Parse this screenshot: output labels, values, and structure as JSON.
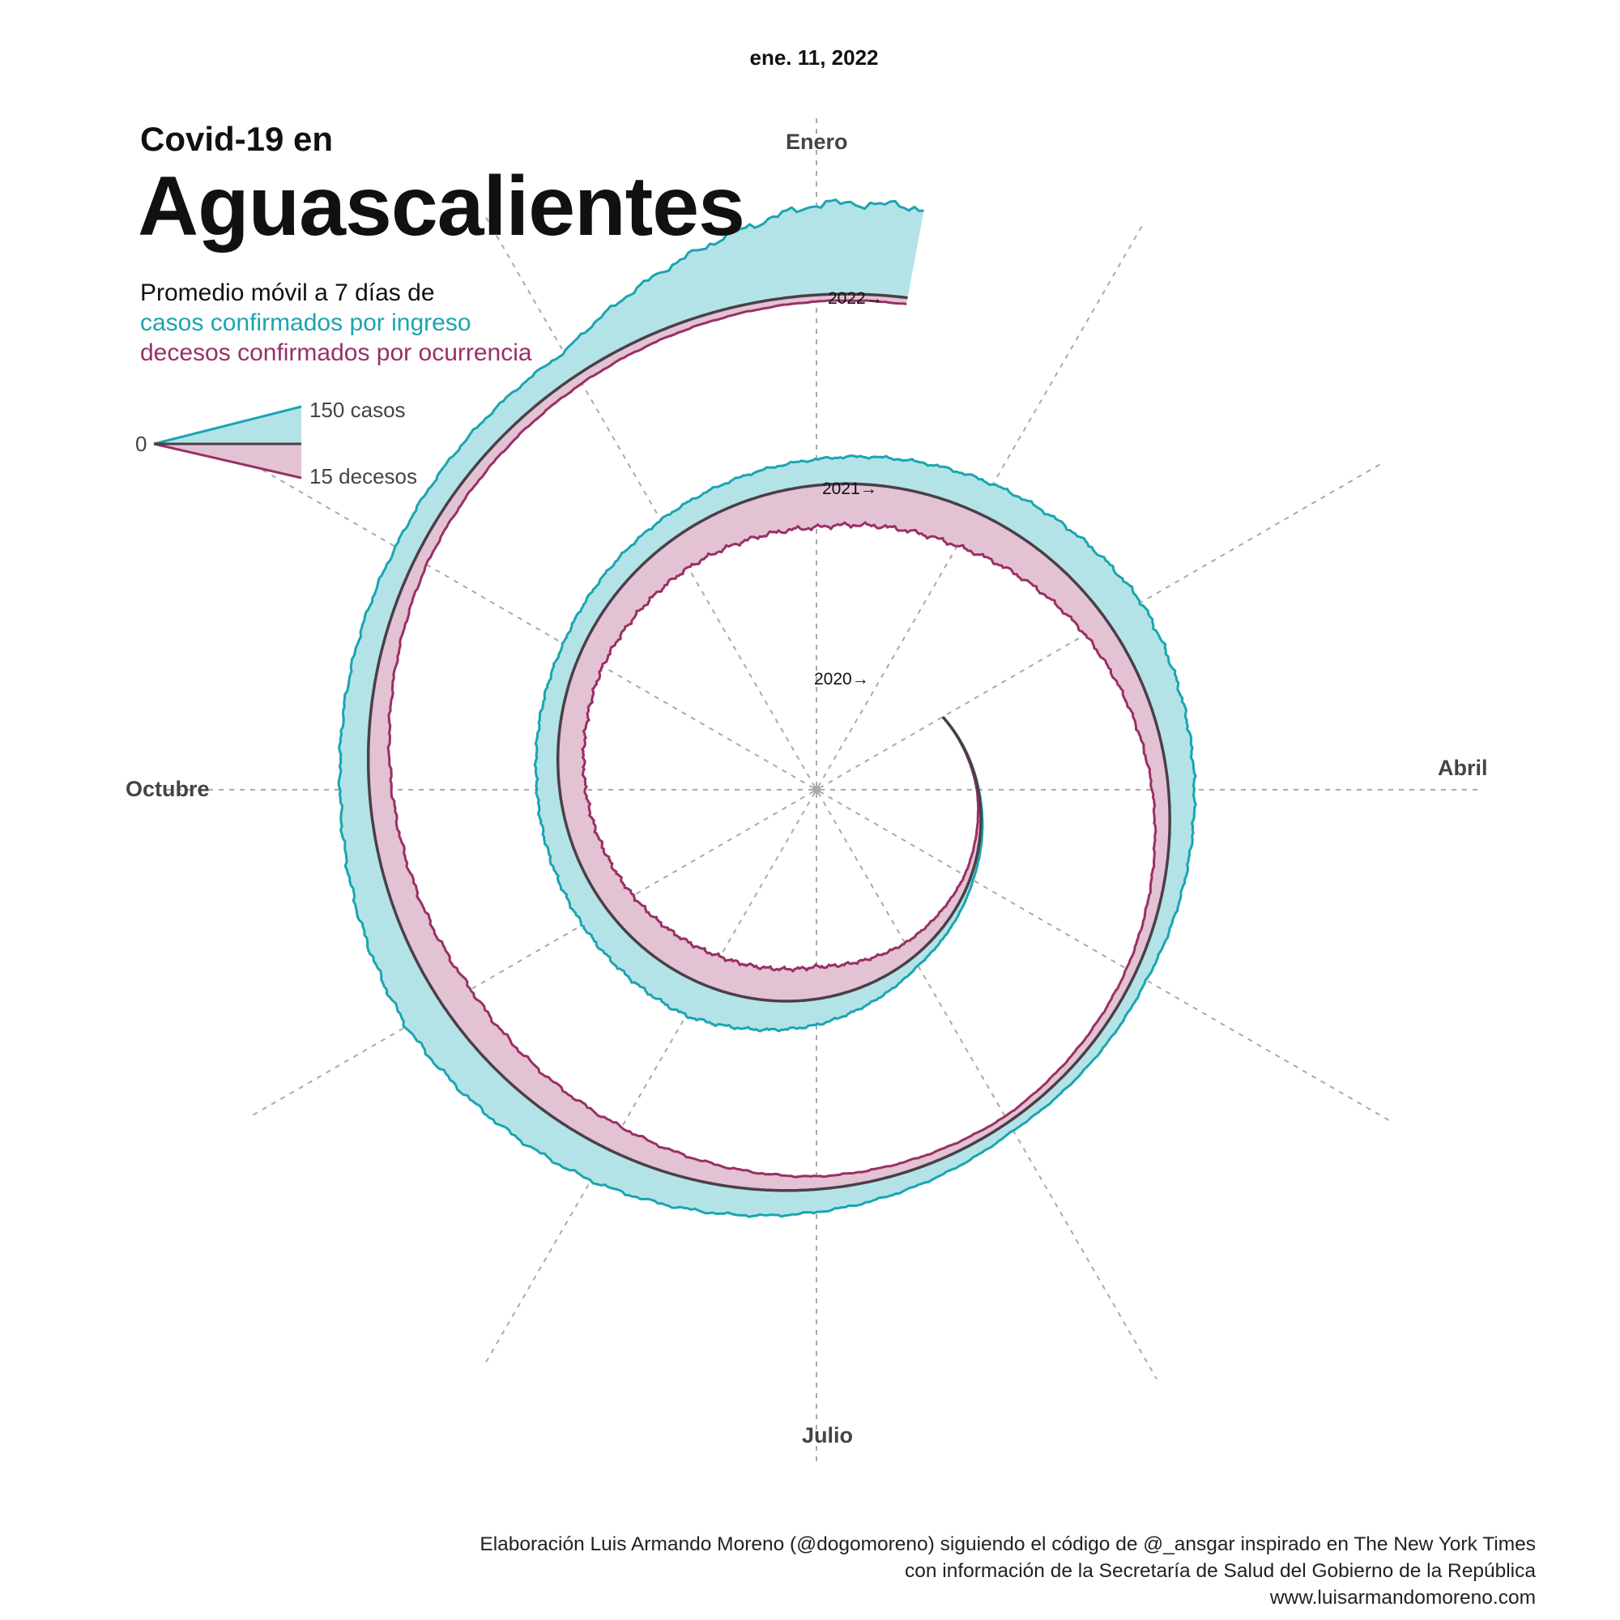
{
  "header": {
    "date": "ene. 11, 2022",
    "title_small": "Covid-19 en",
    "title_big": "Aguascalientes",
    "subtitle_main": "Promedio móvil a 7 días de",
    "subtitle_cases": "casos confirmados por ingreso",
    "subtitle_deaths": "decesos confirmados por ocurrencia"
  },
  "legend": {
    "zero": "0",
    "cases": "150 casos",
    "deaths": "15 decesos"
  },
  "months": {
    "january": "Enero",
    "april": "Abril",
    "july": "Julio",
    "october": "Octubre"
  },
  "credits": {
    "line1": "Elaboración Luis Armando Moreno (@dogomoreno) siguiendo el código de @_ansgar inspirado en The New York Times",
    "line2": "con información de la Secretaría de Salud del Gobierno de la República",
    "line3": "www.luisarmandomoreno.com"
  },
  "colors": {
    "cases": "#1aa5b1",
    "cases_fill": "#b3e3e7",
    "deaths": "#9a2f66",
    "deaths_fill": "#e2c2d3",
    "baseline": "#4a3f48",
    "grid": "#aaaaaa"
  },
  "chart_data": {
    "type": "area",
    "layout": "spiral",
    "start_date": "2020-03",
    "end_date": "2022-01-11",
    "year_labels": [
      "2020→",
      "2021→",
      "2022→"
    ],
    "scale": {
      "cases": 150,
      "deaths": 15
    },
    "series": [
      {
        "name": "casos confirmados por ingreso",
        "side": "outer",
        "x": [
          "2020-03",
          "2020-04",
          "2020-05",
          "2020-06",
          "2020-07",
          "2020-08",
          "2020-09",
          "2020-10",
          "2020-11",
          "2020-12",
          "2021-01",
          "2021-02",
          "2021-03",
          "2021-04",
          "2021-05",
          "2021-06",
          "2021-07",
          "2021-08",
          "2021-09",
          "2021-10",
          "2021-11",
          "2021-12",
          "2022-01"
        ],
        "values": [
          0,
          1,
          5,
          15,
          40,
          55,
          45,
          35,
          30,
          35,
          40,
          50,
          60,
          40,
          20,
          15,
          35,
          55,
          65,
          45,
          35,
          40,
          140
        ]
      },
      {
        "name": "decesos confirmados por ocurrencia",
        "side": "inner",
        "x": [
          "2020-03",
          "2020-04",
          "2020-05",
          "2020-06",
          "2020-07",
          "2020-08",
          "2020-09",
          "2020-10",
          "2020-11",
          "2020-12",
          "2021-01",
          "2021-02",
          "2021-03",
          "2021-04",
          "2021-05",
          "2021-06",
          "2021-07",
          "2021-08",
          "2021-09",
          "2021-10",
          "2021-11",
          "2021-12",
          "2022-01"
        ],
        "values": [
          0,
          0.2,
          1,
          2.5,
          5,
          5,
          4.5,
          4,
          4,
          5,
          6.5,
          6,
          4,
          2.5,
          1.5,
          1,
          2,
          4,
          5,
          3.5,
          2,
          1.5,
          1
        ]
      }
    ]
  }
}
